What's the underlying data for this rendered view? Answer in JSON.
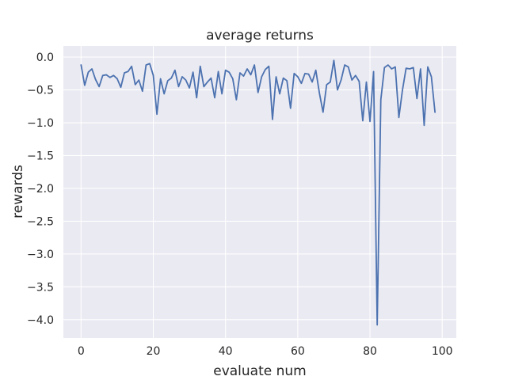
{
  "chart_data": {
    "type": "line",
    "title": "average returns",
    "xlabel": "evaluate num",
    "ylabel": "rewards",
    "xlim": [
      -4.9,
      103.9
    ],
    "ylim": [
      -4.28,
      0.17
    ],
    "xticks": [
      0,
      20,
      40,
      60,
      80,
      100
    ],
    "yticks": [
      0.0,
      -0.5,
      -1.0,
      -1.5,
      -2.0,
      -2.5,
      -3.0,
      -3.5,
      -4.0
    ],
    "xtick_labels": [
      "0",
      "20",
      "40",
      "60",
      "80",
      "100"
    ],
    "ytick_labels": [
      "0.0",
      "−0.5",
      "−1.0",
      "−1.5",
      "−2.0",
      "−2.5",
      "−3.0",
      "−3.5",
      "−4.0"
    ],
    "grid": true,
    "background": "#eaeaf2",
    "grid_color": "#ffffff",
    "series": [
      {
        "color": "#4c72b0",
        "x": [
          0,
          1,
          2,
          3,
          4,
          5,
          6,
          7,
          8,
          9,
          10,
          11,
          12,
          13,
          14,
          15,
          16,
          17,
          18,
          19,
          20,
          21,
          22,
          23,
          24,
          25,
          26,
          27,
          28,
          29,
          30,
          31,
          32,
          33,
          34,
          35,
          36,
          37,
          38,
          39,
          40,
          41,
          42,
          43,
          44,
          45,
          46,
          47,
          48,
          49,
          50,
          51,
          52,
          53,
          54,
          55,
          56,
          57,
          58,
          59,
          60,
          61,
          62,
          63,
          64,
          65,
          66,
          67,
          68,
          69,
          70,
          71,
          72,
          73,
          74,
          75,
          76,
          77,
          78,
          79,
          80,
          81,
          82,
          83,
          84,
          85,
          86,
          87,
          88,
          89,
          90,
          91,
          92,
          93,
          94,
          95,
          96,
          97,
          98
        ],
        "y": [
          -0.12,
          -0.43,
          -0.23,
          -0.18,
          -0.34,
          -0.45,
          -0.28,
          -0.27,
          -0.31,
          -0.28,
          -0.33,
          -0.46,
          -0.24,
          -0.22,
          -0.14,
          -0.42,
          -0.35,
          -0.52,
          -0.12,
          -0.1,
          -0.28,
          -0.87,
          -0.33,
          -0.56,
          -0.36,
          -0.32,
          -0.2,
          -0.45,
          -0.3,
          -0.35,
          -0.47,
          -0.23,
          -0.62,
          -0.14,
          -0.45,
          -0.38,
          -0.32,
          -0.62,
          -0.22,
          -0.56,
          -0.2,
          -0.23,
          -0.33,
          -0.65,
          -0.24,
          -0.29,
          -0.18,
          -0.27,
          -0.12,
          -0.54,
          -0.3,
          -0.19,
          -0.14,
          -0.95,
          -0.3,
          -0.56,
          -0.32,
          -0.36,
          -0.78,
          -0.25,
          -0.3,
          -0.4,
          -0.25,
          -0.26,
          -0.38,
          -0.2,
          -0.55,
          -0.84,
          -0.42,
          -0.38,
          -0.05,
          -0.5,
          -0.35,
          -0.12,
          -0.15,
          -0.35,
          -0.28,
          -0.37,
          -0.97,
          -0.38,
          -0.98,
          -0.22,
          -4.08,
          -0.65,
          -0.16,
          -0.12,
          -0.18,
          -0.15,
          -0.92,
          -0.5,
          -0.17,
          -0.18,
          -0.16,
          -0.63,
          -0.18,
          -1.04,
          -0.15,
          -0.3,
          -0.84
        ]
      }
    ]
  }
}
